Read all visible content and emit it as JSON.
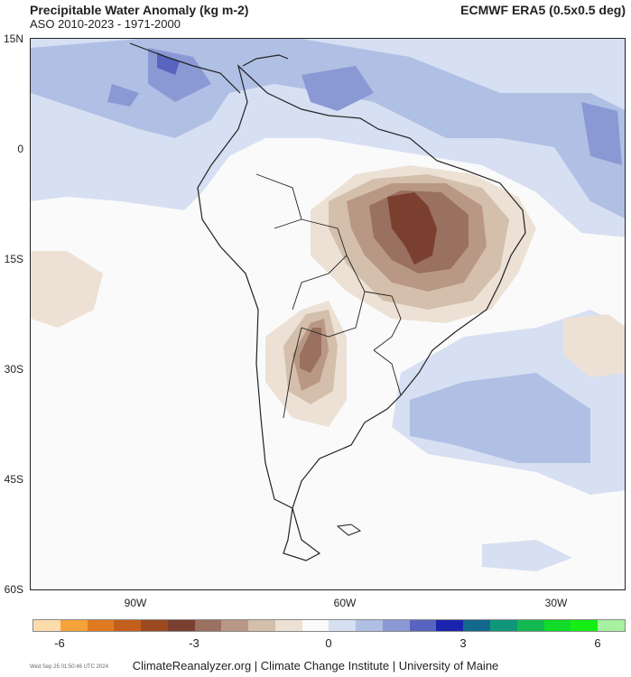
{
  "header": {
    "title": "Precipitable Water Anomaly (kg m-2)",
    "subtitle": "ASO 2010-2023 - 1971-2000",
    "dataset": "ECMWF ERA5 (0.5x0.5 deg)"
  },
  "axes": {
    "lat_labels": [
      "15N",
      "0",
      "15S",
      "30S",
      "45S",
      "60S"
    ],
    "lon_labels": [
      "90W",
      "60W",
      "30W"
    ]
  },
  "colorbar": {
    "colors": [
      "#fddcac",
      "#f7a238",
      "#e07a20",
      "#c35f1c",
      "#9d4a21",
      "#7a3f2e",
      "#9a7060",
      "#b89885",
      "#d3bfab",
      "#ece1d4",
      "#fafafa",
      "#d6e0f2",
      "#b0bfe4",
      "#8a99d4",
      "#5864bf",
      "#1b24ae",
      "#13688e",
      "#10977b",
      "#13ba52",
      "#12da28",
      "#14ee14",
      "#a7f2a0"
    ],
    "tick_labels": [
      "-6",
      "-3",
      "0",
      "3",
      "6"
    ]
  },
  "footer": {
    "timestamp": "Wed Sep 25 01:50:46 UTC 2024",
    "credit": "ClimateReanalyzer.org | Climate Change Institute | University of Maine"
  }
}
